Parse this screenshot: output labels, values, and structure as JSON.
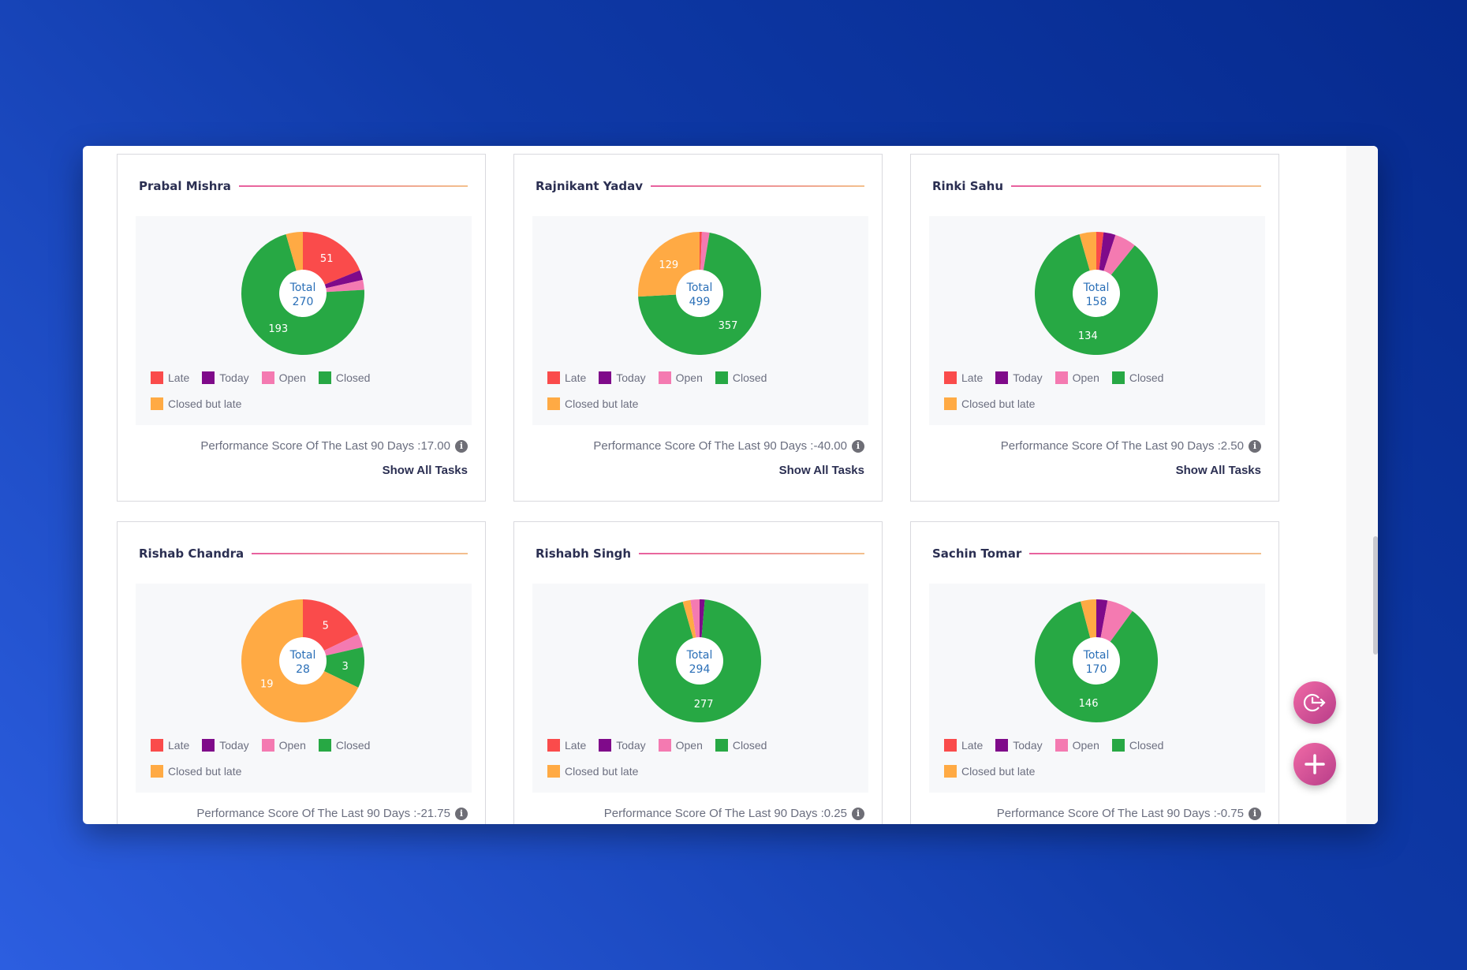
{
  "legend_labels": {
    "late": "Late",
    "today": "Today",
    "open": "Open",
    "closed": "Closed",
    "closed_late": "Closed but late"
  },
  "colors": {
    "late": "#fa4b4b",
    "today": "#7f0a8a",
    "open": "#f47ab1",
    "closed": "#27a844",
    "closed_late": "#ffaa44"
  },
  "show_all_label": "Show All Tasks",
  "score_prefix": "Performance Score Of The Last 90 Days : ",
  "info_icon": "info-icon",
  "fab_icons": [
    "clock-arrow-icon",
    "plus-icon"
  ],
  "cards": [
    {
      "name": "Prabal Mishra",
      "score": "17.00",
      "total_label": "Total",
      "total": "270",
      "chart_data": {
        "type": "pie",
        "slices": [
          {
            "key": "late",
            "value": 51,
            "label": "51"
          },
          {
            "key": "today",
            "value": 7,
            "label": ""
          },
          {
            "key": "open",
            "value": 7,
            "label": ""
          },
          {
            "key": "closed",
            "value": 193,
            "label": "193"
          },
          {
            "key": "closed_late",
            "value": 12,
            "label": ""
          }
        ]
      }
    },
    {
      "name": "Rajnikant Yadav",
      "score": "-40.00",
      "total_label": "Total",
      "total": "499",
      "chart_data": {
        "type": "pie",
        "slices": [
          {
            "key": "late",
            "value": 3,
            "label": ""
          },
          {
            "key": "open",
            "value": 10,
            "label": ""
          },
          {
            "key": "closed",
            "value": 357,
            "label": "357"
          },
          {
            "key": "closed_late",
            "value": 129,
            "label": "129"
          }
        ]
      }
    },
    {
      "name": "Rinki Sahu",
      "score": "2.50",
      "total_label": "Total",
      "total": "158",
      "chart_data": {
        "type": "pie",
        "slices": [
          {
            "key": "late",
            "value": 3,
            "label": ""
          },
          {
            "key": "today",
            "value": 5,
            "label": ""
          },
          {
            "key": "open",
            "value": 9,
            "label": ""
          },
          {
            "key": "closed",
            "value": 134,
            "label": "134"
          },
          {
            "key": "closed_late",
            "value": 7,
            "label": ""
          }
        ]
      }
    },
    {
      "name": "Rishab Chandra",
      "score": "-21.75",
      "total_label": "Total",
      "total": "28",
      "chart_data": {
        "type": "pie",
        "slices": [
          {
            "key": "late",
            "value": 5,
            "label": "5"
          },
          {
            "key": "open",
            "value": 1,
            "label": ""
          },
          {
            "key": "closed",
            "value": 3,
            "label": "3"
          },
          {
            "key": "closed_late",
            "value": 19,
            "label": "19"
          }
        ]
      }
    },
    {
      "name": "Rishabh Singh",
      "score": "0.25",
      "total_label": "Total",
      "total": "294",
      "chart_data": {
        "type": "pie",
        "slices": [
          {
            "key": "today",
            "value": 4,
            "label": ""
          },
          {
            "key": "closed",
            "value": 277,
            "label": "277"
          },
          {
            "key": "closed_late",
            "value": 6,
            "label": ""
          },
          {
            "key": "open",
            "value": 7,
            "label": ""
          }
        ]
      }
    },
    {
      "name": "Sachin Tomar",
      "score": "-0.75",
      "total_label": "Total",
      "total": "170",
      "chart_data": {
        "type": "pie",
        "slices": [
          {
            "key": "today",
            "value": 5,
            "label": ""
          },
          {
            "key": "open",
            "value": 12,
            "label": ""
          },
          {
            "key": "closed",
            "value": 146,
            "label": "146"
          },
          {
            "key": "closed_late",
            "value": 7,
            "label": ""
          }
        ]
      }
    }
  ]
}
